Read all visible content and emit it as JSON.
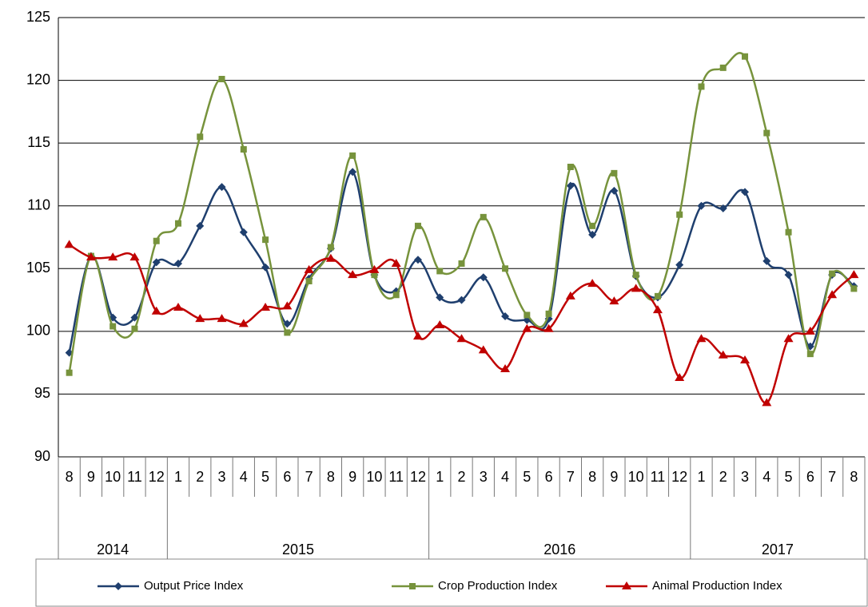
{
  "chart_data": {
    "type": "line",
    "categories": [
      "8",
      "9",
      "10",
      "11",
      "12",
      "1",
      "2",
      "3",
      "4",
      "5",
      "6",
      "7",
      "8",
      "9",
      "10",
      "11",
      "12",
      "1",
      "2",
      "3",
      "4",
      "5",
      "6",
      "7",
      "8",
      "9",
      "10",
      "11",
      "12",
      "1",
      "2",
      "3",
      "4",
      "5",
      "6",
      "7",
      "8"
    ],
    "years": [
      "2014",
      "2015",
      "2016",
      "2017"
    ],
    "ylim": [
      90,
      125
    ],
    "yticks": [
      90,
      95,
      100,
      105,
      110,
      115,
      120,
      125
    ],
    "grid": true,
    "smooth": true,
    "series": [
      {
        "name": "Output Price Index",
        "color": "#1f3f6e",
        "marker": "diamond",
        "values": [
          98.3,
          106.0,
          101.1,
          101.1,
          105.5,
          105.4,
          108.4,
          111.5,
          107.9,
          105.1,
          100.6,
          104.2,
          106.6,
          112.7,
          104.5,
          103.2,
          105.7,
          102.7,
          102.5,
          104.3,
          101.2,
          100.9,
          101.0,
          111.6,
          107.7,
          111.2,
          104.4,
          102.7,
          105.3,
          110.0,
          109.8,
          111.1,
          105.6,
          104.5,
          98.8,
          104.5,
          103.6
        ]
      },
      {
        "name": "Crop Production Index",
        "color": "#77933c",
        "marker": "square",
        "values": [
          96.7,
          106.0,
          100.4,
          100.2,
          107.2,
          108.6,
          115.5,
          120.1,
          114.5,
          107.3,
          99.9,
          104.0,
          106.7,
          114.0,
          104.5,
          102.9,
          108.4,
          104.8,
          105.4,
          109.1,
          105.0,
          101.3,
          101.4,
          113.1,
          108.4,
          112.6,
          104.5,
          102.8,
          109.3,
          119.5,
          121.0,
          121.9,
          115.8,
          107.9,
          98.2,
          104.6,
          103.4
        ]
      },
      {
        "name": "Animal Production Index",
        "color": "#c00000",
        "marker": "triangle",
        "values": [
          106.9,
          105.9,
          105.9,
          105.9,
          101.6,
          101.9,
          101.0,
          101.0,
          100.6,
          101.9,
          102.0,
          104.9,
          105.8,
          104.5,
          104.9,
          105.4,
          99.6,
          100.5,
          99.4,
          98.5,
          97.0,
          100.2,
          100.2,
          102.8,
          103.8,
          102.4,
          103.4,
          101.7,
          96.3,
          99.4,
          98.1,
          97.7,
          94.3,
          99.4,
          100.0,
          102.9,
          104.5
        ]
      }
    ]
  }
}
